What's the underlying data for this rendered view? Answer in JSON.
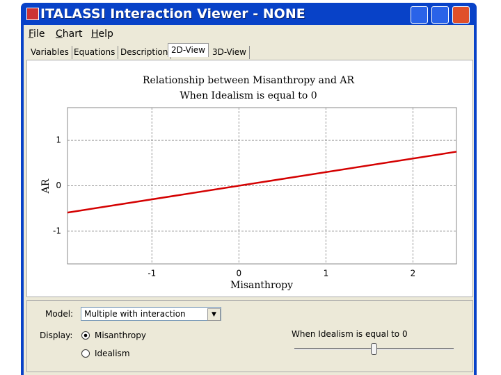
{
  "window": {
    "title": "ITALASSI Interaction Viewer - NONE"
  },
  "menu": [
    "File",
    "Chart",
    "Help"
  ],
  "tabs": [
    "Variables",
    "Equations",
    "Description",
    "2D-View",
    "3D-View"
  ],
  "chart_data": {
    "type": "line",
    "title": "Relationship between Misanthropy and AR",
    "subtitle": "When Idealism is equal to 0",
    "x_label": "Misanthropy",
    "y_label": "AR",
    "x": [
      -1.97,
      2.5
    ],
    "values": [
      -0.59,
      0.75
    ],
    "color": "#d40000",
    "xlim": [
      -1.97,
      2.5
    ],
    "xticks": [
      -1,
      0,
      1,
      2
    ],
    "ylim": [
      -1.72,
      1.72
    ],
    "yticks": [
      -1,
      0,
      1
    ],
    "grid": true
  },
  "controls": {
    "model_label": "Model:",
    "model_value": "Multiple with interaction",
    "display_label": "Display:",
    "options": [
      "Misanthropy",
      "Idealism"
    ],
    "slider_label": "When Idealism is equal to 0"
  }
}
